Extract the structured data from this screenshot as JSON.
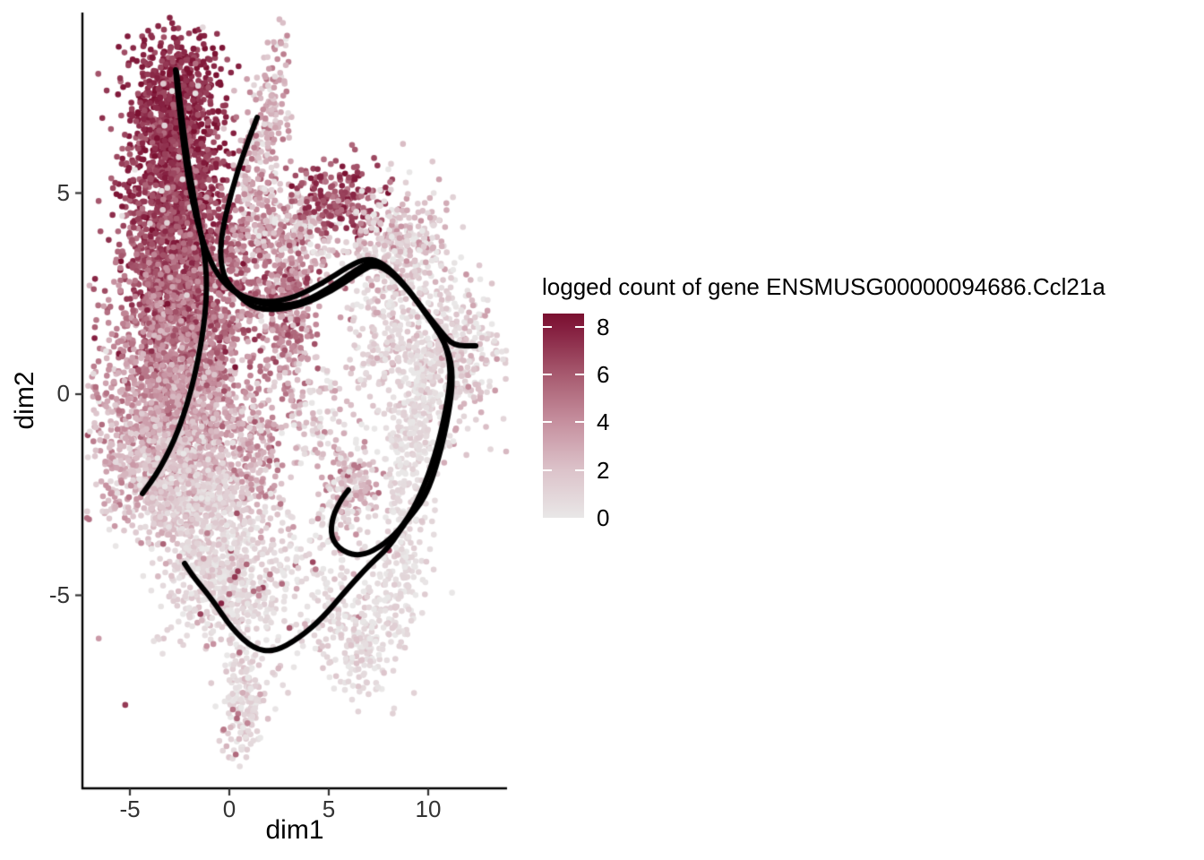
{
  "chart_data": {
    "type": "scatter",
    "title": "",
    "xlabel": "dim1",
    "ylabel": "dim2",
    "x_ticks": [
      -5,
      0,
      5,
      10
    ],
    "y_ticks": [
      5,
      0,
      -5
    ],
    "x_range": [
      -7.4,
      14.0
    ],
    "y_range": [
      -9.8,
      9.5
    ],
    "grid": false,
    "legend": {
      "title": "logged count of gene ENSMUSG00000094686.Ccl21a",
      "ticks": [
        8,
        6,
        4,
        2,
        0
      ],
      "range": [
        0,
        8.56
      ],
      "position": "right"
    },
    "color_scale": {
      "stops": [
        [
          0,
          "#E9E7E7"
        ],
        [
          2,
          "#DCC3CA"
        ],
        [
          4,
          "#C6909F"
        ],
        [
          6,
          "#A75A6F"
        ],
        [
          8,
          "#831C3D"
        ],
        [
          8.56,
          "#7A1030"
        ]
      ]
    },
    "point_style": {
      "radius": 3.3
    },
    "trajectory_style": {
      "color": "#000000",
      "width": 6
    },
    "axis_color": "#000000",
    "tick_color": "#333333",
    "seed": 1234,
    "clusters": [
      {
        "name": "column-top",
        "cx": -2.66,
        "cy": 7.24,
        "sx": 1.17,
        "sy": 0.85,
        "n": 700,
        "v": 7.6,
        "vsd": 0.8
      },
      {
        "name": "column-mid",
        "cx": -2.66,
        "cy": 5.23,
        "sx": 1.22,
        "sy": 1.0,
        "n": 800,
        "v": 7.0,
        "vsd": 0.9
      },
      {
        "name": "column-low",
        "cx": -2.52,
        "cy": 3.12,
        "sx": 1.44,
        "sy": 0.89,
        "n": 750,
        "v": 6.2,
        "vsd": 1.0
      },
      {
        "name": "mass-upper",
        "cx": -2.52,
        "cy": 1.34,
        "sx": 1.71,
        "sy": 0.85,
        "n": 800,
        "v": 5.0,
        "vsd": 1.2
      },
      {
        "name": "mass-mid",
        "cx": -2.7,
        "cy": -0.33,
        "sx": 1.89,
        "sy": 0.78,
        "n": 750,
        "v": 3.6,
        "vsd": 1.2
      },
      {
        "name": "mass-low",
        "cx": -2.52,
        "cy": -1.78,
        "sx": 1.8,
        "sy": 0.67,
        "n": 600,
        "v": 2.2,
        "vsd": 1.0
      },
      {
        "name": "mass-bottom",
        "cx": -1.85,
        "cy": -2.78,
        "sx": 1.58,
        "sy": 0.56,
        "n": 400,
        "v": 1.4,
        "vsd": 0.8
      },
      {
        "name": "bottom-blob",
        "cx": -0.5,
        "cy": -4.45,
        "sx": 1.44,
        "sy": 0.85,
        "n": 550,
        "v": 1.0,
        "vsd": 0.7
      },
      {
        "name": "bottom-blob-dark-sprinkle",
        "cx": -0.5,
        "cy": -4.3,
        "sx": 1.5,
        "sy": 0.9,
        "n": 25,
        "v": 5.0,
        "vsd": 1.5
      },
      {
        "name": "bottom-tail",
        "cx": 0.72,
        "cy": -7.57,
        "sx": 0.63,
        "sy": 0.89,
        "n": 180,
        "v": 1.0,
        "vsd": 0.8
      },
      {
        "name": "bottom-tail-dark-sprinkle",
        "cx": 0.72,
        "cy": -7.4,
        "sx": 0.6,
        "sy": 0.9,
        "n": 8,
        "v": 5.5,
        "vsd": 1.2
      },
      {
        "name": "spike",
        "cx": 1.62,
        "cy": 6.12,
        "sx": 0.5,
        "sy": 1.45,
        "rot": 0.35,
        "n": 260,
        "v": 2.8,
        "vsd": 1.5
      },
      {
        "name": "mid-scatter",
        "cx": 1.53,
        "cy": 3.34,
        "sx": 1.71,
        "sy": 0.89,
        "n": 300,
        "v": 4.6,
        "vsd": 1.4
      },
      {
        "name": "upper-mid-light",
        "cx": 3.33,
        "cy": 4.01,
        "sx": 1.13,
        "sy": 0.67,
        "n": 160,
        "v": 2.0,
        "vsd": 1.3
      },
      {
        "name": "dark-clusterlet",
        "cx": 5.5,
        "cy": 4.79,
        "sx": 1.17,
        "sy": 0.49,
        "n": 220,
        "v": 6.3,
        "vsd": 1.1
      },
      {
        "name": "upper-right",
        "cx": 8.65,
        "cy": 3.56,
        "sx": 1.35,
        "sy": 0.76,
        "n": 380,
        "v": 1.6,
        "vsd": 1.2
      },
      {
        "name": "right-neck",
        "cx": 7.84,
        "cy": 1.34,
        "sx": 0.99,
        "sy": 0.89,
        "n": 150,
        "v": 1.2,
        "vsd": 0.9
      },
      {
        "name": "far-right",
        "cx": 11.35,
        "cy": 0.89,
        "sx": 1.22,
        "sy": 0.89,
        "n": 380,
        "v": 1.4,
        "vsd": 1.1
      },
      {
        "name": "mid-strand",
        "cx": 2.97,
        "cy": 2.0,
        "sx": 0.59,
        "sy": 1.16,
        "n": 260,
        "v": 4.2,
        "vsd": 1.4
      },
      {
        "name": "sparse-mid",
        "cx": 1.4,
        "cy": -1.34,
        "sx": 0.72,
        "sy": 0.85,
        "n": 130,
        "v": 3.2,
        "vsd": 1.3
      },
      {
        "name": "conn-mid-right",
        "cx": 4.23,
        "cy": -0.45,
        "sx": 1.13,
        "sy": 0.78,
        "n": 110,
        "v": 1.5,
        "vsd": 1.2
      },
      {
        "name": "hook-clusterlet",
        "cx": 6.13,
        "cy": -2.23,
        "sx": 0.68,
        "sy": 0.53,
        "n": 150,
        "v": 2.6,
        "vsd": 1.5
      },
      {
        "name": "right-strand",
        "cx": 9.28,
        "cy": -0.89,
        "sx": 0.72,
        "sy": 1.34,
        "rot": 0.25,
        "n": 330,
        "v": 0.7,
        "vsd": 0.6
      },
      {
        "name": "right-strand-low",
        "cx": 8.65,
        "cy": -4.45,
        "sx": 0.63,
        "sy": 0.67,
        "n": 120,
        "v": 0.6,
        "vsd": 0.5
      },
      {
        "name": "bottom-mid-sparse",
        "cx": 4.68,
        "cy": -4.68,
        "sx": 2.03,
        "sy": 1.22,
        "n": 260,
        "v": 0.8,
        "vsd": 0.7
      },
      {
        "name": "bottom-mid-dark-sprinkle",
        "cx": 4.3,
        "cy": -4.5,
        "sx": 2.0,
        "sy": 1.2,
        "n": 15,
        "v": 4.5,
        "vsd": 1.5
      },
      {
        "name": "bottom-right-blob",
        "cx": 6.85,
        "cy": -6.24,
        "sx": 0.9,
        "sy": 0.62,
        "n": 150,
        "v": 0.8,
        "vsd": 0.6
      },
      {
        "name": "left-fringe",
        "cx": -5.9,
        "cy": -1.78,
        "sx": 0.81,
        "sy": 1.34,
        "n": 80,
        "v": 2.5,
        "vsd": 1.5
      },
      {
        "name": "column-light-sprinkle",
        "cx": -2.6,
        "cy": 5.5,
        "sx": 1.2,
        "sy": 1.8,
        "n": 22,
        "v": 1.2,
        "vsd": 0.8
      },
      {
        "name": "outlier-dark-dot",
        "cx": -5.23,
        "cy": -7.72,
        "sx": 0.03,
        "sy": 0.03,
        "n": 1,
        "v": 7.0,
        "vsd": 0.1
      }
    ],
    "trajectories": [
      {
        "name": "lineage-column-to-right-stub",
        "points": [
          [
            -2.7,
            8.06
          ],
          [
            -2.39,
            6.46
          ],
          [
            -1.89,
            4.79
          ],
          [
            -1.17,
            3.5
          ],
          [
            -0.36,
            2.78
          ],
          [
            0.63,
            2.41
          ],
          [
            1.98,
            2.27
          ],
          [
            3.33,
            2.41
          ],
          [
            4.68,
            2.76
          ],
          [
            6.04,
            3.19
          ],
          [
            6.94,
            3.39
          ],
          [
            7.75,
            3.25
          ],
          [
            8.74,
            2.78
          ],
          [
            9.73,
            2.12
          ],
          [
            10.63,
            1.56
          ],
          [
            11.26,
            1.2
          ],
          [
            12.39,
            1.2
          ]
        ]
      },
      {
        "name": "lineage-spike-to-hook",
        "points": [
          [
            1.4,
            6.88
          ],
          [
            0.72,
            6.01
          ],
          [
            0.09,
            5.01
          ],
          [
            -0.41,
            3.96
          ],
          [
            -0.45,
            3.23
          ],
          [
            -0.05,
            2.67
          ],
          [
            0.99,
            2.32
          ],
          [
            2.43,
            2.18
          ],
          [
            3.78,
            2.29
          ],
          [
            5.14,
            2.67
          ],
          [
            6.4,
            3.1
          ],
          [
            7.12,
            3.3
          ],
          [
            7.93,
            3.16
          ],
          [
            8.96,
            2.63
          ],
          [
            10.0,
            1.92
          ],
          [
            10.86,
            1.29
          ],
          [
            11.17,
            0.56
          ],
          [
            10.9,
            -0.4
          ],
          [
            10.36,
            -1.51
          ],
          [
            9.64,
            -2.49
          ],
          [
            8.78,
            -3.25
          ],
          [
            7.79,
            -3.74
          ],
          [
            6.67,
            -4.03
          ],
          [
            5.68,
            -3.92
          ],
          [
            5.09,
            -3.56
          ],
          [
            5.18,
            -3.05
          ],
          [
            5.63,
            -2.61
          ],
          [
            5.99,
            -2.38
          ]
        ]
      },
      {
        "name": "lineage-backbone-to-bottom-u",
        "points": [
          [
            -0.18,
            2.85
          ],
          [
            0.72,
            2.23
          ],
          [
            2.07,
            2.07
          ],
          [
            3.6,
            2.2
          ],
          [
            5.14,
            2.56
          ],
          [
            6.49,
            3.01
          ],
          [
            7.21,
            3.23
          ],
          [
            8.02,
            3.07
          ],
          [
            9.1,
            2.54
          ],
          [
            10.14,
            1.83
          ],
          [
            10.99,
            1.16
          ],
          [
            11.26,
            0.45
          ],
          [
            11.04,
            -0.49
          ],
          [
            10.54,
            -1.6
          ],
          [
            9.86,
            -2.58
          ],
          [
            8.83,
            -3.19
          ],
          [
            8.06,
            -3.79
          ],
          [
            7.07,
            -4.23
          ],
          [
            5.95,
            -4.83
          ],
          [
            4.68,
            -5.57
          ],
          [
            3.47,
            -6.08
          ],
          [
            2.25,
            -6.41
          ],
          [
            1.22,
            -6.33
          ],
          [
            0.14,
            -5.84
          ],
          [
            -0.9,
            -5.08
          ],
          [
            -1.76,
            -4.57
          ],
          [
            -2.25,
            -4.21
          ]
        ]
      },
      {
        "name": "lineage-column-to-lower-left",
        "points": [
          [
            -2.66,
            8.02
          ],
          [
            -2.25,
            6.24
          ],
          [
            -1.67,
            4.57
          ],
          [
            -1.13,
            3.23
          ],
          [
            -1.17,
            2.0
          ],
          [
            -1.71,
            0.45
          ],
          [
            -2.52,
            -0.89
          ],
          [
            -3.51,
            -1.89
          ],
          [
            -4.37,
            -2.47
          ]
        ]
      }
    ]
  }
}
